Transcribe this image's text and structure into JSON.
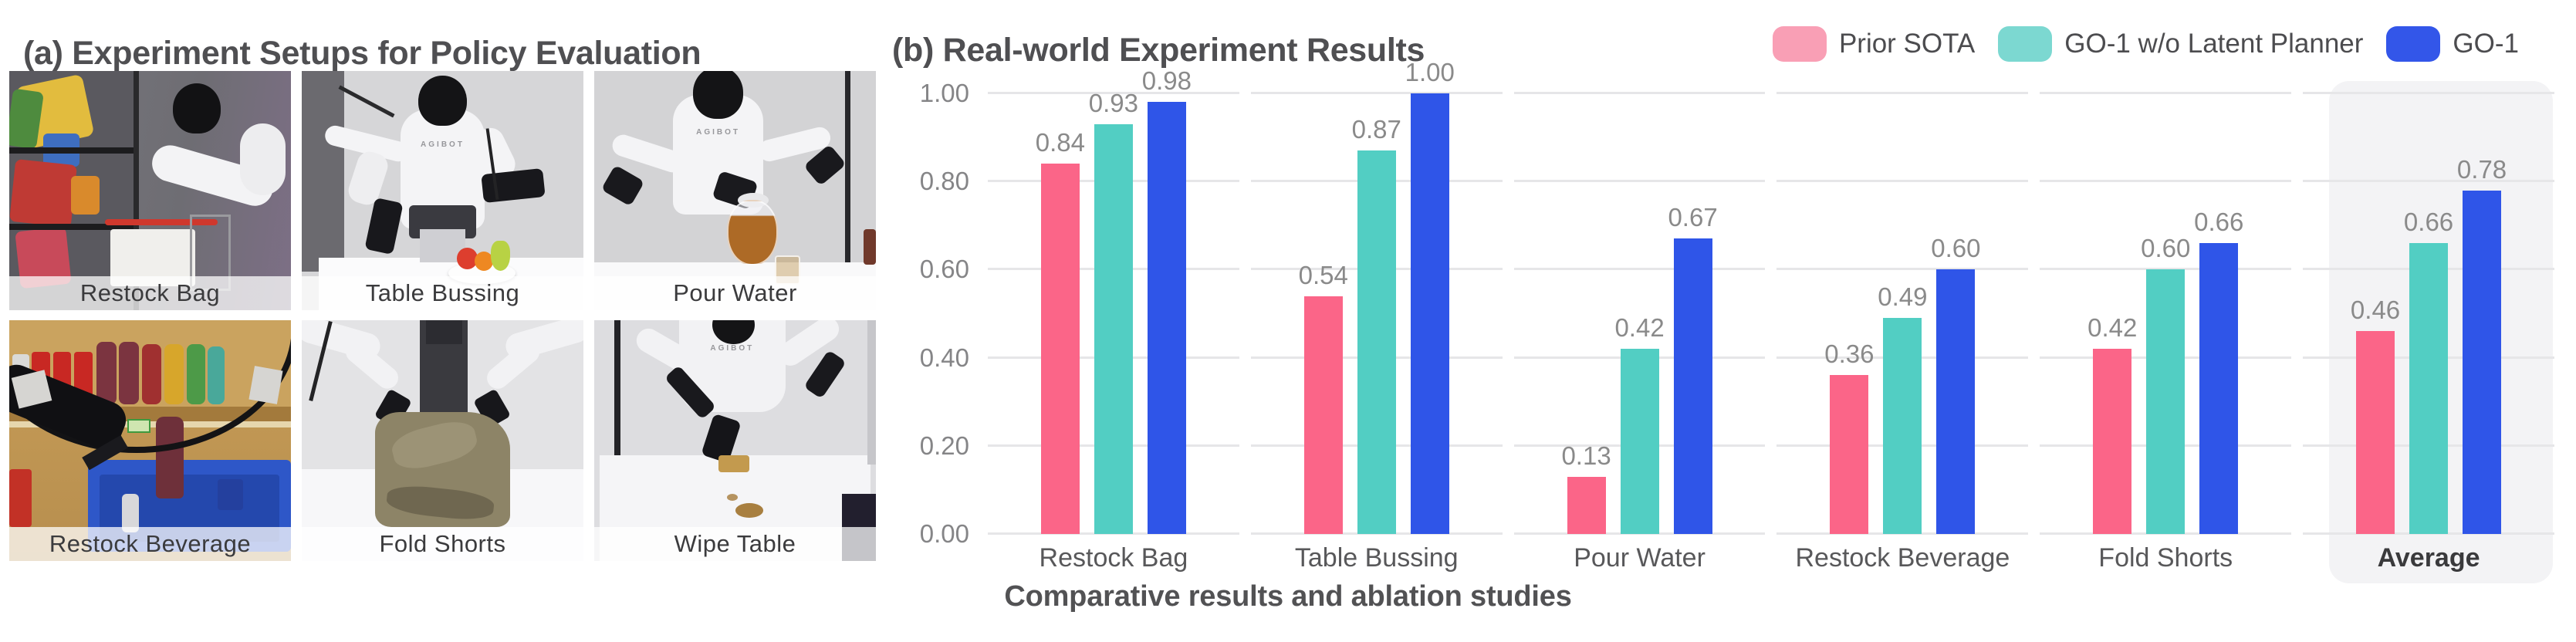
{
  "setups": {
    "title": "(a) Experiment Setups for Policy Evaluation",
    "robot_logo": "AGIBOT",
    "items": [
      {
        "label": "Restock Bag"
      },
      {
        "label": "Table Bussing"
      },
      {
        "label": "Pour Water"
      },
      {
        "label": "Restock Beverage"
      },
      {
        "label": "Fold Shorts"
      },
      {
        "label": "Wipe Table"
      }
    ]
  },
  "chart_data": {
    "type": "bar",
    "title": "(b) Real-world Experiment Results",
    "caption": "Comparative results and ablation studies",
    "categories": [
      "Restock Bag",
      "Table Bussing",
      "Pour Water",
      "Restock Beverage",
      "Fold Shorts",
      "Average"
    ],
    "series": [
      {
        "name": "Prior SOTA",
        "color": "#FB6588",
        "legend_swatch_color": "#F99FB5",
        "values": [
          0.84,
          0.54,
          0.13,
          0.36,
          0.42,
          0.46
        ]
      },
      {
        "name": "GO-1 w/o Latent Planner",
        "color": "#52CEC3",
        "legend_swatch_color": "#7CD8D1",
        "values": [
          0.93,
          0.87,
          0.42,
          0.49,
          0.6,
          0.66
        ]
      },
      {
        "name": "GO-1",
        "color": "#2F55E8",
        "legend_swatch_color": "#3356E9",
        "values": [
          0.98,
          1.0,
          0.67,
          0.6,
          0.66,
          0.78
        ]
      }
    ],
    "ylim": [
      0,
      1
    ],
    "yticks": [
      "0.00",
      "0.20",
      "0.40",
      "0.60",
      "0.80",
      "1.00"
    ],
    "grid": true,
    "legend_position": "top-right",
    "highlighted_category": "Average",
    "xlabel": "",
    "ylabel": ""
  }
}
